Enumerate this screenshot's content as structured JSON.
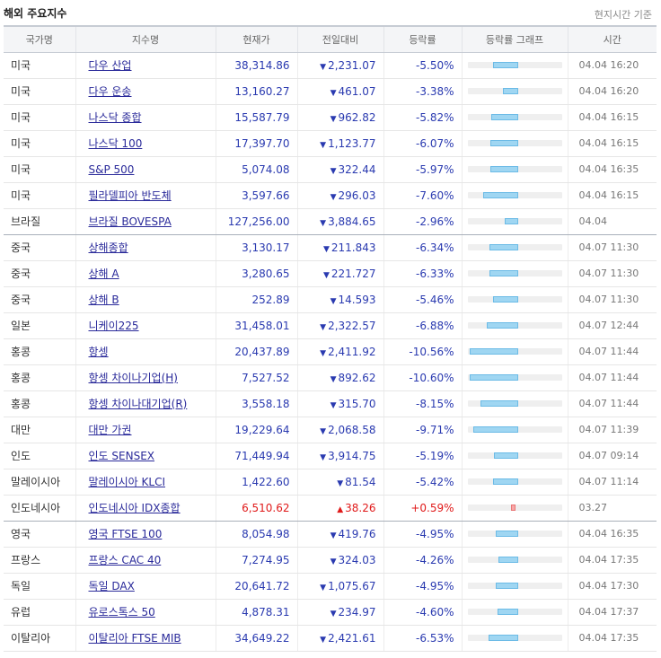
{
  "page": {
    "title": "해외 주요지수",
    "timezone_note": "현지시간 기준"
  },
  "table": {
    "headers": [
      "국가명",
      "지수명",
      "현재가",
      "전일대비",
      "등락률",
      "등락률 그래프",
      "시간"
    ],
    "rows": [
      {
        "country": "미국",
        "name": "다우 산업",
        "price": "38,314.86",
        "change": "2,231.07",
        "dir": "down",
        "rate": "-5.50%",
        "rate_value": -5.5,
        "time": "04.04 16:20"
      },
      {
        "country": "미국",
        "name": "다우 운송",
        "price": "13,160.27",
        "change": "461.07",
        "dir": "down",
        "rate": "-3.38%",
        "rate_value": -3.38,
        "time": "04.04 16:20"
      },
      {
        "country": "미국",
        "name": "나스닥 종합",
        "price": "15,587.79",
        "change": "962.82",
        "dir": "down",
        "rate": "-5.82%",
        "rate_value": -5.82,
        "time": "04.04 16:15"
      },
      {
        "country": "미국",
        "name": "나스닥 100",
        "price": "17,397.70",
        "change": "1,123.77",
        "dir": "down",
        "rate": "-6.07%",
        "rate_value": -6.07,
        "time": "04.04 16:15"
      },
      {
        "country": "미국",
        "name": "S&P 500",
        "price": "5,074.08",
        "change": "322.44",
        "dir": "down",
        "rate": "-5.97%",
        "rate_value": -5.97,
        "time": "04.04 16:35"
      },
      {
        "country": "미국",
        "name": "필라델피아 반도체",
        "price": "3,597.66",
        "change": "296.03",
        "dir": "down",
        "rate": "-7.60%",
        "rate_value": -7.6,
        "time": "04.04 16:15"
      },
      {
        "country": "브라질",
        "name": "브라질 BOVESPA",
        "price": "127,256.00",
        "change": "3,884.65",
        "dir": "down",
        "rate": "-2.96%",
        "rate_value": -2.96,
        "time": "04.04",
        "group_end": true
      },
      {
        "country": "중국",
        "name": "상해종합",
        "price": "3,130.17",
        "change": "211.843",
        "dir": "down",
        "rate": "-6.34%",
        "rate_value": -6.34,
        "time": "04.07 11:30"
      },
      {
        "country": "중국",
        "name": "상해 A",
        "price": "3,280.65",
        "change": "221.727",
        "dir": "down",
        "rate": "-6.33%",
        "rate_value": -6.33,
        "time": "04.07 11:30"
      },
      {
        "country": "중국",
        "name": "상해 B",
        "price": "252.89",
        "change": "14.593",
        "dir": "down",
        "rate": "-5.46%",
        "rate_value": -5.46,
        "time": "04.07 11:30"
      },
      {
        "country": "일본",
        "name": "니케이225",
        "price": "31,458.01",
        "change": "2,322.57",
        "dir": "down",
        "rate": "-6.88%",
        "rate_value": -6.88,
        "time": "04.07 12:44"
      },
      {
        "country": "홍콩",
        "name": "항셍",
        "price": "20,437.89",
        "change": "2,411.92",
        "dir": "down",
        "rate": "-10.56%",
        "rate_value": -10.56,
        "time": "04.07 11:44"
      },
      {
        "country": "홍콩",
        "name": "항셍 차이나기업(H)",
        "price": "7,527.52",
        "change": "892.62",
        "dir": "down",
        "rate": "-10.60%",
        "rate_value": -10.6,
        "time": "04.07 11:44"
      },
      {
        "country": "홍콩",
        "name": "항셍 차이나대기업(R)",
        "price": "3,558.18",
        "change": "315.70",
        "dir": "down",
        "rate": "-8.15%",
        "rate_value": -8.15,
        "time": "04.07 11:44"
      },
      {
        "country": "대만",
        "name": "대만 가권",
        "price": "19,229.64",
        "change": "2,068.58",
        "dir": "down",
        "rate": "-9.71%",
        "rate_value": -9.71,
        "time": "04.07 11:39"
      },
      {
        "country": "인도",
        "name": "인도 SENSEX",
        "price": "71,449.94",
        "change": "3,914.75",
        "dir": "down",
        "rate": "-5.19%",
        "rate_value": -5.19,
        "time": "04.07 09:14"
      },
      {
        "country": "말레이시아",
        "name": "말레이시아 KLCI",
        "price": "1,422.60",
        "change": "81.54",
        "dir": "down",
        "rate": "-5.42%",
        "rate_value": -5.42,
        "time": "04.07 11:14"
      },
      {
        "country": "인도네시아",
        "name": "인도네시아 IDX종합",
        "price": "6,510.62",
        "change": "38.26",
        "dir": "up",
        "rate": "+0.59%",
        "rate_value": 0.59,
        "time": "03.27",
        "group_end": true
      },
      {
        "country": "영국",
        "name": "영국 FTSE 100",
        "price": "8,054.98",
        "change": "419.76",
        "dir": "down",
        "rate": "-4.95%",
        "rate_value": -4.95,
        "time": "04.04 16:35"
      },
      {
        "country": "프랑스",
        "name": "프랑스 CAC 40",
        "price": "7,274.95",
        "change": "324.03",
        "dir": "down",
        "rate": "-4.26%",
        "rate_value": -4.26,
        "time": "04.04 17:35"
      },
      {
        "country": "독일",
        "name": "독일 DAX",
        "price": "20,641.72",
        "change": "1,075.67",
        "dir": "down",
        "rate": "-4.95%",
        "rate_value": -4.95,
        "time": "04.04 17:30"
      },
      {
        "country": "유럽",
        "name": "유로스톡스 50",
        "price": "4,878.31",
        "change": "234.97",
        "dir": "down",
        "rate": "-4.60%",
        "rate_value": -4.6,
        "time": "04.04 17:37"
      },
      {
        "country": "이탈리아",
        "name": "이탈리아 FTSE MIB",
        "price": "34,649.22",
        "change": "2,421.61",
        "dir": "down",
        "rate": "-6.53%",
        "rate_value": -6.53,
        "time": "04.04 17:35"
      }
    ]
  },
  "colors": {
    "down": "#2a3ab0",
    "up": "#e01a1a",
    "bar_down": "#9fd6f2",
    "bar_up": "#f7a7a7",
    "link": "#2a2a9a"
  },
  "icons": {
    "down": "triangle-down-icon",
    "up": "triangle-up-icon"
  }
}
